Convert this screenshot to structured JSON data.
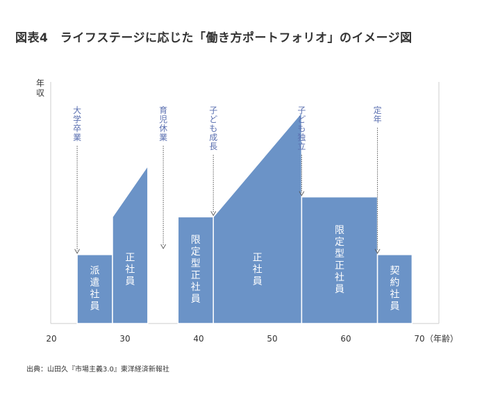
{
  "figure_title": "図表4　ライフステージに応じた「働き方ポートフォリオ」のイメージ図",
  "source_note": "出典：山田久『市場主義3.0』東洋経済新報社",
  "chart_data": {
    "type": "area",
    "title": "図表4　ライフステージに応じた「働き方ポートフォリオ」のイメージ図",
    "xlabel": "（年齢）",
    "ylabel": "年収",
    "xlim": [
      20,
      72
    ],
    "x_ticks": [
      20,
      30,
      40,
      50,
      60,
      70
    ],
    "y_ticks": [],
    "grid": false,
    "colors": {
      "fill": "#6b93c7",
      "stroke": "#ffffff",
      "axis": "#cccccc",
      "event_text": "#5a6fb0",
      "event_line": "#555555"
    },
    "segments": [
      {
        "label": "派遣社員",
        "x": [
          23.5,
          28.3
        ],
        "y_start": 31,
        "y_end": 31
      },
      {
        "label": "正社員",
        "x": [
          28.3,
          33.1
        ],
        "y_start": 48,
        "y_end": 71
      },
      {
        "label": "限定型正社員",
        "x": [
          37.2,
          42
        ],
        "y_start": 48,
        "y_end": 48
      },
      {
        "label": "正社員",
        "x": [
          42,
          54
        ],
        "y_start": 48,
        "y_end": 95
      },
      {
        "label": "限定型正社員",
        "x": [
          54,
          64.3
        ],
        "y_start": 57,
        "y_end": 57
      },
      {
        "label": "契約社員",
        "x": [
          64.3,
          69
        ],
        "y_start": 31,
        "y_end": 31
      }
    ],
    "events": [
      {
        "label": "大学卒業",
        "x": 23.5
      },
      {
        "label": "育児休業",
        "x": 35.2
      },
      {
        "label": "子ども成長",
        "x": 42
      },
      {
        "label": "子ども独立",
        "x": 54
      },
      {
        "label": "定年",
        "x": 64.3
      }
    ]
  }
}
